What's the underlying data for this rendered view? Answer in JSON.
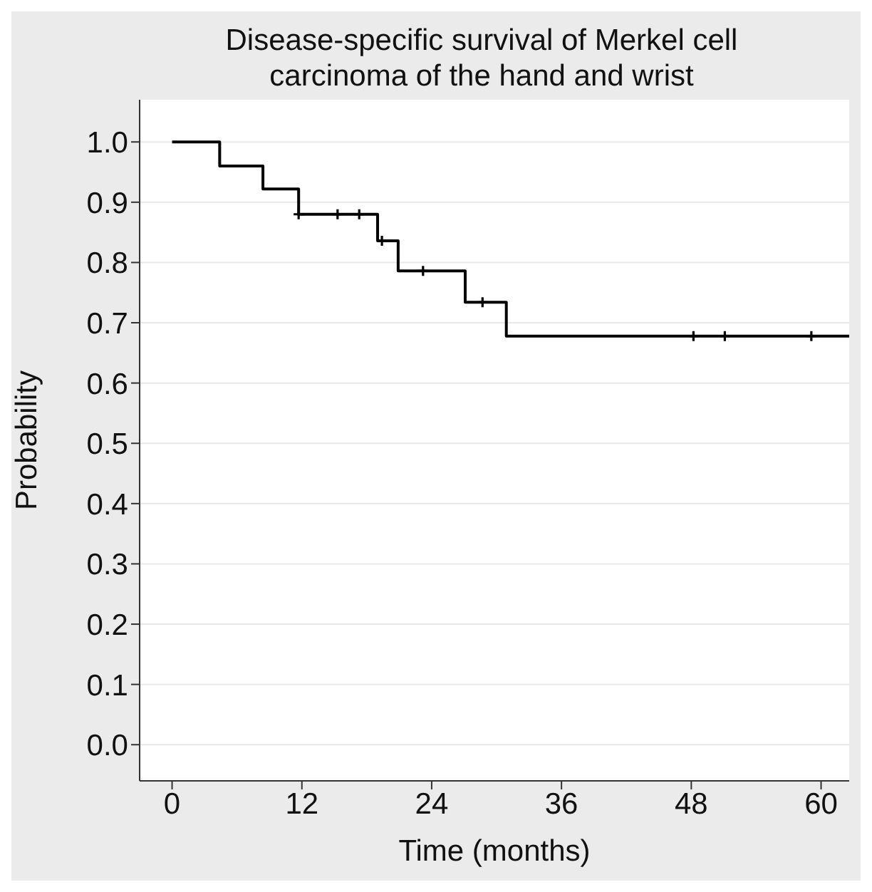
{
  "chart_data": {
    "type": "step",
    "title": "Disease-specific survival of Merkel cell carcinoma of the hand and wrist",
    "xlabel": "Time (months)",
    "ylabel": "Probability",
    "xlim": [
      -3,
      62.6
    ],
    "xticks": [
      0,
      12,
      24,
      36,
      48,
      60
    ],
    "ylim": [
      -0.06,
      1.07
    ],
    "yticks": [
      {
        "value": 0,
        "label": "0.0"
      },
      0.1,
      0.2,
      0.3,
      0.4,
      0.5,
      0.6,
      0.7,
      0.8,
      0.9,
      {
        "value": 1,
        "label": "1.0"
      }
    ],
    "grid": "y",
    "series": [
      {
        "color": "#000000",
        "x": [
          0,
          4.4,
          8.4,
          11.7,
          19.0,
          20.9,
          27.1,
          30.9,
          62.6
        ],
        "values": [
          1.0,
          0.96,
          0.922,
          0.88,
          0.836,
          0.786,
          0.734,
          0.678,
          0.678
        ]
      },
      {
        "type": "scatter",
        "color": "#000000",
        "marker": "cross",
        "x": [
          11.7,
          15.3,
          17.3,
          19.4,
          23.2,
          28.7,
          48.2,
          51.1,
          59.1
        ],
        "values": [
          0.88,
          0.88,
          0.88,
          0.836,
          0.786,
          0.734,
          0.678,
          0.678,
          0.678
        ]
      }
    ]
  }
}
